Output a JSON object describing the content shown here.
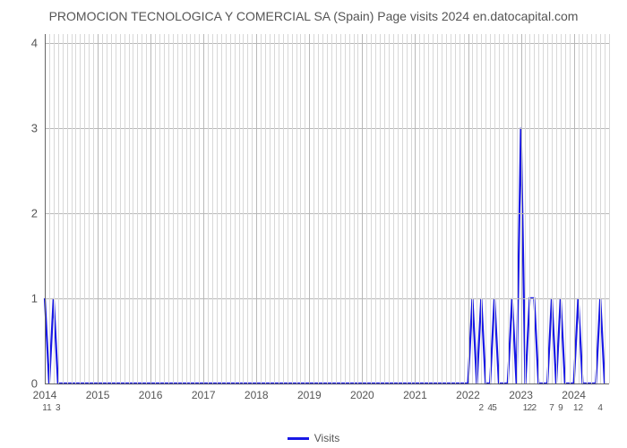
{
  "title": "PROMOCION TECNOLOGICA Y COMERCIAL SA (Spain) Page visits 2024 en.datocapital.com",
  "chart": {
    "type": "line",
    "series_color": "#1818e6",
    "line_width": 2.2,
    "background_color": "#ffffff",
    "grid_minor_color": "#d8d8d8",
    "grid_major_color": "#b8b8b8",
    "axis_color": "#666666",
    "text_color": "#555555",
    "title_fontsize": 14,
    "ytick_fontsize": 13,
    "xtick_fontsize": 12,
    "pointlabel_fontsize": 10,
    "ylim": [
      0,
      4.1
    ],
    "yticks": [
      0,
      1,
      2,
      3,
      4
    ],
    "x_range_months": 128,
    "x_year_ticks": [
      {
        "label": "2014",
        "month": 0
      },
      {
        "label": "2015",
        "month": 12
      },
      {
        "label": "2016",
        "month": 24
      },
      {
        "label": "2017",
        "month": 36
      },
      {
        "label": "2018",
        "month": 48
      },
      {
        "label": "2019",
        "month": 60
      },
      {
        "label": "2020",
        "month": 72
      },
      {
        "label": "2021",
        "month": 84
      },
      {
        "label": "2022",
        "month": 96
      },
      {
        "label": "2023",
        "month": 108
      },
      {
        "label": "2024",
        "month": 120
      }
    ],
    "minor_month_step": 1,
    "points": [
      {
        "m": 0,
        "v": 1,
        "lbl": "1"
      },
      {
        "m": 1,
        "v": 0,
        "lbl": "1"
      },
      {
        "m": 2,
        "v": 1,
        "lbl": ""
      },
      {
        "m": 3,
        "v": 0,
        "lbl": "3"
      },
      {
        "m": 4,
        "v": 0,
        "lbl": ""
      },
      {
        "m": 96,
        "v": 0,
        "lbl": ""
      },
      {
        "m": 97,
        "v": 1,
        "lbl": ""
      },
      {
        "m": 98,
        "v": 0,
        "lbl": ""
      },
      {
        "m": 99,
        "v": 1,
        "lbl": "2"
      },
      {
        "m": 100,
        "v": 0,
        "lbl": ""
      },
      {
        "m": 101,
        "v": 0,
        "lbl": "4"
      },
      {
        "m": 102,
        "v": 1,
        "lbl": "5"
      },
      {
        "m": 103,
        "v": 0,
        "lbl": ""
      },
      {
        "m": 105,
        "v": 0,
        "lbl": ""
      },
      {
        "m": 106,
        "v": 1,
        "lbl": ""
      },
      {
        "m": 107,
        "v": 0,
        "lbl": ""
      },
      {
        "m": 108,
        "v": 3,
        "lbl": ""
      },
      {
        "m": 109,
        "v": 0,
        "lbl": "1"
      },
      {
        "m": 110,
        "v": 1,
        "lbl": "2"
      },
      {
        "m": 111,
        "v": 1,
        "lbl": "2"
      },
      {
        "m": 112,
        "v": 0,
        "lbl": ""
      },
      {
        "m": 114,
        "v": 0,
        "lbl": ""
      },
      {
        "m": 115,
        "v": 1,
        "lbl": "7"
      },
      {
        "m": 116,
        "v": 0,
        "lbl": ""
      },
      {
        "m": 117,
        "v": 1,
        "lbl": "9"
      },
      {
        "m": 118,
        "v": 0,
        "lbl": ""
      },
      {
        "m": 120,
        "v": 0,
        "lbl": ""
      },
      {
        "m": 121,
        "v": 1,
        "lbl": "12"
      },
      {
        "m": 122,
        "v": 0,
        "lbl": ""
      },
      {
        "m": 125,
        "v": 0,
        "lbl": ""
      },
      {
        "m": 126,
        "v": 1,
        "lbl": "4"
      },
      {
        "m": 127,
        "v": 0,
        "lbl": ""
      }
    ],
    "legend_label": "Visits"
  }
}
